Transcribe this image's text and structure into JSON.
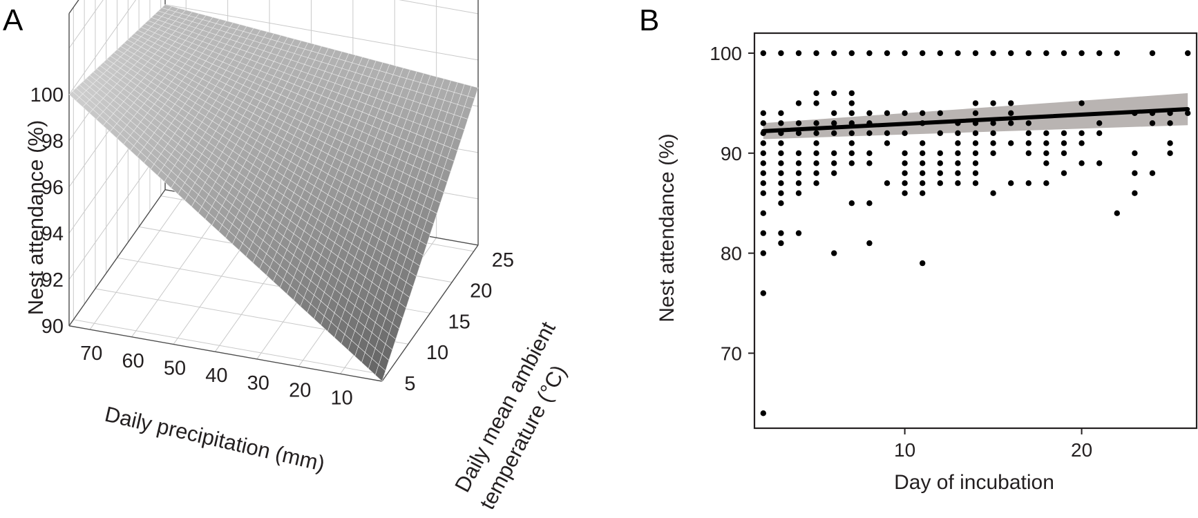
{
  "figure": {
    "panel_a": {
      "letter": "A"
    },
    "panel_b": {
      "letter": "B"
    }
  },
  "chart_data": [
    {
      "panel": "A",
      "type": "surface3d",
      "title": "",
      "zlabel": "Nest attendance (%)",
      "xlabel": "Daily precipitation (mm)",
      "ylabel_line1": "Daily mean ambient",
      "ylabel_line2": "temperature (°C)",
      "z_ticks": [
        "90",
        "92",
        "94",
        "96",
        "98",
        "100"
      ],
      "x_ticks": [
        "70",
        "60",
        "50",
        "40",
        "30",
        "20",
        "10"
      ],
      "y_ticks": [
        "5",
        "10",
        "15",
        "20",
        "25"
      ],
      "z_range": [
        90,
        100
      ],
      "x_range": [
        0,
        75
      ],
      "y_range": [
        4,
        26
      ],
      "surface_corners": {
        "precip_high_temp_low": 100,
        "precip_high_temp_high": 98,
        "precip_low_temp_low": 90,
        "precip_low_temp_high": 96.8
      },
      "surface_color": "#9a9a9a",
      "grid": true
    },
    {
      "panel": "B",
      "type": "scatter",
      "title": "",
      "xlabel": "Day of incubation",
      "ylabel": "Nest attendance (%)",
      "x_ticks": [
        "10",
        "20"
      ],
      "y_ticks": [
        "70",
        "80",
        "90",
        "100"
      ],
      "xlim": [
        1.5,
        26.5
      ],
      "ylim": [
        62.5,
        102
      ],
      "grid": false,
      "points": [
        [
          2,
          100
        ],
        [
          3,
          100
        ],
        [
          4,
          100
        ],
        [
          5,
          100
        ],
        [
          6,
          100
        ],
        [
          7,
          100
        ],
        [
          8,
          100
        ],
        [
          9,
          100
        ],
        [
          10,
          100
        ],
        [
          11,
          100
        ],
        [
          12,
          100
        ],
        [
          13,
          100
        ],
        [
          14,
          100
        ],
        [
          15,
          100
        ],
        [
          16,
          100
        ],
        [
          17,
          100
        ],
        [
          18,
          100
        ],
        [
          19,
          100
        ],
        [
          20,
          100
        ],
        [
          21,
          100
        ],
        [
          22,
          100
        ],
        [
          24,
          100
        ],
        [
          26,
          100
        ],
        [
          2,
          94
        ],
        [
          2,
          93
        ],
        [
          2,
          92
        ],
        [
          2,
          91
        ],
        [
          2,
          90
        ],
        [
          2,
          89
        ],
        [
          2,
          88
        ],
        [
          2,
          87
        ],
        [
          2,
          86
        ],
        [
          2,
          84
        ],
        [
          2,
          82
        ],
        [
          2,
          80
        ],
        [
          2,
          76
        ],
        [
          2,
          64
        ],
        [
          3,
          94
        ],
        [
          3,
          93
        ],
        [
          3,
          92
        ],
        [
          3,
          91
        ],
        [
          3,
          90
        ],
        [
          3,
          89
        ],
        [
          3,
          88
        ],
        [
          3,
          87
        ],
        [
          3,
          86
        ],
        [
          3,
          85
        ],
        [
          3,
          82
        ],
        [
          3,
          81
        ],
        [
          4,
          95
        ],
        [
          4,
          93
        ],
        [
          4,
          92
        ],
        [
          4,
          90
        ],
        [
          4,
          89
        ],
        [
          4,
          88
        ],
        [
          4,
          87
        ],
        [
          4,
          86
        ],
        [
          4,
          82
        ],
        [
          5,
          96
        ],
        [
          5,
          95
        ],
        [
          5,
          93
        ],
        [
          5,
          92
        ],
        [
          5,
          91
        ],
        [
          5,
          90
        ],
        [
          5,
          89
        ],
        [
          5,
          88
        ],
        [
          5,
          87
        ],
        [
          6,
          96
        ],
        [
          6,
          94
        ],
        [
          6,
          93
        ],
        [
          6,
          92
        ],
        [
          6,
          90
        ],
        [
          6,
          89
        ],
        [
          6,
          88
        ],
        [
          6,
          80
        ],
        [
          7,
          96
        ],
        [
          7,
          95
        ],
        [
          7,
          94
        ],
        [
          7,
          93
        ],
        [
          7,
          92
        ],
        [
          7,
          91
        ],
        [
          7,
          90
        ],
        [
          7,
          89
        ],
        [
          7,
          85
        ],
        [
          8,
          94
        ],
        [
          8,
          93
        ],
        [
          8,
          92
        ],
        [
          8,
          90
        ],
        [
          8,
          89
        ],
        [
          8,
          85
        ],
        [
          8,
          81
        ],
        [
          9,
          94
        ],
        [
          9,
          92
        ],
        [
          9,
          91
        ],
        [
          9,
          87
        ],
        [
          10,
          94
        ],
        [
          10,
          92
        ],
        [
          10,
          90
        ],
        [
          10,
          89
        ],
        [
          10,
          88
        ],
        [
          10,
          87
        ],
        [
          10,
          86
        ],
        [
          11,
          94
        ],
        [
          11,
          93
        ],
        [
          11,
          91
        ],
        [
          11,
          90
        ],
        [
          11,
          89
        ],
        [
          11,
          88
        ],
        [
          11,
          87
        ],
        [
          11,
          86
        ],
        [
          11,
          79
        ],
        [
          12,
          94
        ],
        [
          12,
          92
        ],
        [
          12,
          90
        ],
        [
          12,
          89
        ],
        [
          12,
          88
        ],
        [
          12,
          87
        ],
        [
          13,
          93
        ],
        [
          13,
          92
        ],
        [
          13,
          91
        ],
        [
          13,
          90
        ],
        [
          13,
          89
        ],
        [
          13,
          88
        ],
        [
          13,
          87
        ],
        [
          14,
          95
        ],
        [
          14,
          94
        ],
        [
          14,
          93
        ],
        [
          14,
          92
        ],
        [
          14,
          91
        ],
        [
          14,
          90
        ],
        [
          14,
          89
        ],
        [
          14,
          88
        ],
        [
          14,
          87
        ],
        [
          15,
          95
        ],
        [
          15,
          93
        ],
        [
          15,
          92
        ],
        [
          15,
          91
        ],
        [
          15,
          90
        ],
        [
          15,
          86
        ],
        [
          16,
          95
        ],
        [
          16,
          94
        ],
        [
          16,
          93
        ],
        [
          16,
          91
        ],
        [
          16,
          87
        ],
        [
          17,
          93
        ],
        [
          17,
          92
        ],
        [
          17,
          91
        ],
        [
          17,
          90
        ],
        [
          17,
          87
        ],
        [
          18,
          92
        ],
        [
          18,
          91
        ],
        [
          18,
          90
        ],
        [
          18,
          89
        ],
        [
          18,
          87
        ],
        [
          19,
          92
        ],
        [
          19,
          91
        ],
        [
          19,
          90
        ],
        [
          19,
          88
        ],
        [
          20,
          95
        ],
        [
          20,
          92
        ],
        [
          20,
          91
        ],
        [
          20,
          89
        ],
        [
          21,
          93
        ],
        [
          21,
          92
        ],
        [
          21,
          89
        ],
        [
          22,
          84
        ],
        [
          23,
          94
        ],
        [
          23,
          90
        ],
        [
          23,
          88
        ],
        [
          23,
          86
        ],
        [
          24,
          94
        ],
        [
          24,
          93
        ],
        [
          24,
          88
        ],
        [
          25,
          94
        ],
        [
          25,
          93
        ],
        [
          25,
          91
        ],
        [
          25,
          90
        ],
        [
          26,
          94
        ]
      ],
      "fit": {
        "x": [
          2,
          26
        ],
        "y": [
          92.2,
          94.4
        ]
      },
      "ci": {
        "x": [
          2,
          26
        ],
        "lower": [
          91.4,
          92.8
        ],
        "upper": [
          93.0,
          96.0
        ]
      },
      "point_color": "#000000",
      "line_color": "#000000",
      "ci_color": "#b9b4b2"
    }
  ]
}
